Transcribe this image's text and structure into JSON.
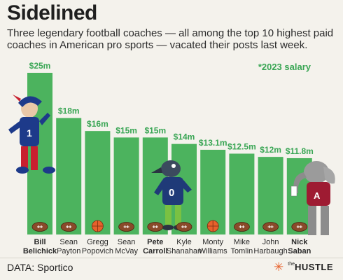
{
  "header": {
    "title": "Sidelined",
    "subtitle": "Three legendary football coaches — all among the top 10 highest paid coaches in American pro sports — vacated their posts last week."
  },
  "note": "*2023 salary",
  "footer": {
    "source": "DATA: Sportico",
    "brand_small": "the",
    "brand_big": "HUSTLE"
  },
  "colors": {
    "bar": "#4cb35e",
    "value_label": "#3aa655",
    "background": "#f4f2ec",
    "football": "#8a4a2a",
    "basketball": "#e8622c"
  },
  "chart_data": {
    "type": "bar",
    "categories": [
      [
        "Bill",
        "Belichick"
      ],
      [
        "Sean",
        "Payton"
      ],
      [
        "Gregg",
        "Popovich"
      ],
      [
        "Sean",
        "McVay"
      ],
      [
        "Pete",
        "Carroll"
      ],
      [
        "Kyle",
        "Shanahan"
      ],
      [
        "Monty",
        "Williams"
      ],
      [
        "Mike",
        "Tomlin"
      ],
      [
        "John",
        "Harbaugh"
      ],
      [
        "Nick",
        "Saban"
      ]
    ],
    "values": [
      25,
      18,
      16,
      15,
      15,
      14,
      13.1,
      12.5,
      12,
      11.8
    ],
    "value_labels": [
      "$25m",
      "$18m",
      "$16m",
      "$15m",
      "$15m",
      "$14m",
      "$13.1m",
      "$12.5m",
      "$12m",
      "$11.8m"
    ],
    "bold": [
      true,
      false,
      false,
      false,
      true,
      false,
      false,
      false,
      false,
      true
    ],
    "sport_icons": [
      "football-icon",
      "football-icon",
      "basketball-icon",
      "football-icon",
      "football-icon",
      "football-icon",
      "basketball-icon",
      "football-icon",
      "football-icon",
      "football-icon"
    ],
    "ylim": [
      0,
      25
    ],
    "grid": false,
    "legend": "none"
  }
}
